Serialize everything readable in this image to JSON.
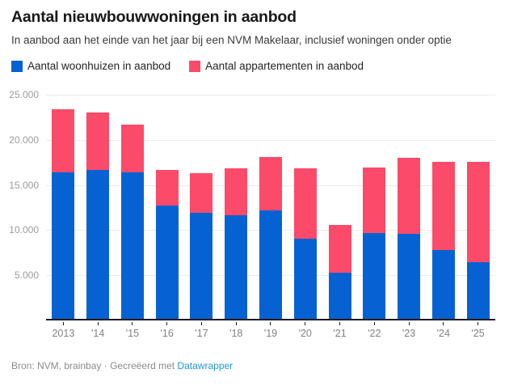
{
  "header": {
    "title": "Aantal nieuwbouwwoningen in aanbod",
    "subtitle": "In aanbod aan het einde van het jaar bij een NVM Makelaar, inclusief woningen onder optie"
  },
  "legend": {
    "items": [
      {
        "label": "Aantal woonhuizen in aanbod",
        "color": "#0662d2"
      },
      {
        "label": "Aantal appartementen in aanbod",
        "color": "#fc4a6a"
      }
    ]
  },
  "chart_data": {
    "type": "bar",
    "stacked": true,
    "title": "Aantal nieuwbouwwoningen in aanbod",
    "subtitle": "In aanbod aan het einde van het jaar bij een NVM Makelaar, inclusief woningen onder optie",
    "categories": [
      "2013",
      "'14",
      "'15",
      "'16",
      "'17",
      "'18",
      "'19",
      "'20",
      "'21",
      "'22",
      "'23",
      "'24",
      "'25"
    ],
    "series": [
      {
        "name": "Aantal woonhuizen in aanbod",
        "color": "#0662d2",
        "values": [
          16200,
          16500,
          16200,
          12500,
          11700,
          11500,
          12000,
          8900,
          5100,
          9500,
          9400,
          7600,
          6300
        ]
      },
      {
        "name": "Aantal appartementen in aanbod",
        "color": "#fc4a6a",
        "values": [
          7000,
          6400,
          5300,
          3900,
          4400,
          5200,
          5900,
          7800,
          5300,
          7300,
          8400,
          9800,
          11100
        ]
      }
    ],
    "totals": [
      23200,
      22900,
      21500,
      16400,
      16100,
      16700,
      17900,
      16700,
      10400,
      16800,
      17800,
      17400,
      17400
    ],
    "ylim": [
      0,
      25000
    ],
    "yticks": [
      {
        "value": 5000,
        "label": "5.000"
      },
      {
        "value": 10000,
        "label": "10.000"
      },
      {
        "value": 15000,
        "label": "15.000"
      },
      {
        "value": 20000,
        "label": "20.000"
      },
      {
        "value": 25000,
        "label": "25.000"
      }
    ],
    "xlabel": "",
    "ylabel": "",
    "grid": "horizontal",
    "legend_position": "top",
    "axis_color": "#1a1a1a",
    "gridline_color": "#ebebeb"
  },
  "footer": {
    "source_label": "Bron: NVM, brainbay",
    "separator": "·",
    "created_label": "Gecreëerd met",
    "link_label": "Datawrapper",
    "link_color": "#1e96d4"
  }
}
